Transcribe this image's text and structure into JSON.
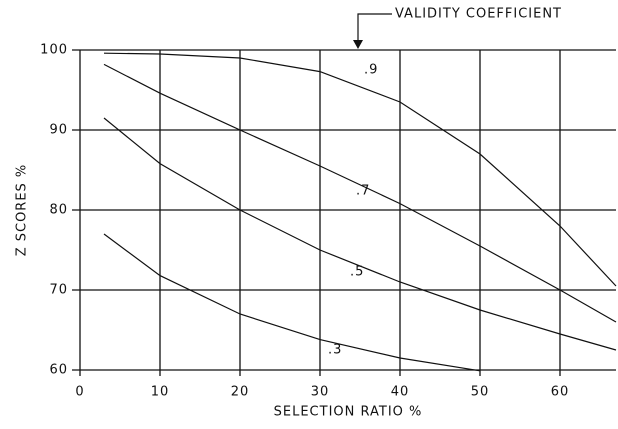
{
  "chart_data": {
    "type": "line",
    "annotation": "VALIDITY COEFFICIENT",
    "xlabel": "SELECTION RATIO %",
    "ylabel": "Z SCORES %",
    "xlim": [
      0,
      67
    ],
    "ylim": [
      60,
      100
    ],
    "xticks": [
      0,
      10,
      20,
      30,
      40,
      50,
      60
    ],
    "yticks": [
      60,
      70,
      80,
      90,
      100
    ],
    "grid": true,
    "series": [
      {
        "name": ".9",
        "color": "#111111",
        "x": [
          3,
          10,
          20,
          30,
          40,
          50,
          60,
          67
        ],
        "values": [
          99.6,
          99.5,
          99,
          97.3,
          93.5,
          87,
          78,
          70.5
        ]
      },
      {
        "name": ".7",
        "color": "#111111",
        "x": [
          3,
          10,
          20,
          30,
          40,
          50,
          60,
          67
        ],
        "values": [
          98.2,
          94.6,
          90,
          85.5,
          80.8,
          75.5,
          70,
          66
        ]
      },
      {
        "name": ".5",
        "color": "#111111",
        "x": [
          3,
          10,
          20,
          30,
          40,
          50,
          60,
          67
        ],
        "values": [
          91.5,
          85.8,
          80,
          75,
          71,
          67.5,
          64.5,
          62.5
        ]
      },
      {
        "name": ".3",
        "color": "#111111",
        "x": [
          3,
          10,
          20,
          30,
          40,
          50
        ],
        "values": [
          77,
          71.8,
          67,
          63.8,
          61.5,
          59.9
        ]
      }
    ]
  }
}
